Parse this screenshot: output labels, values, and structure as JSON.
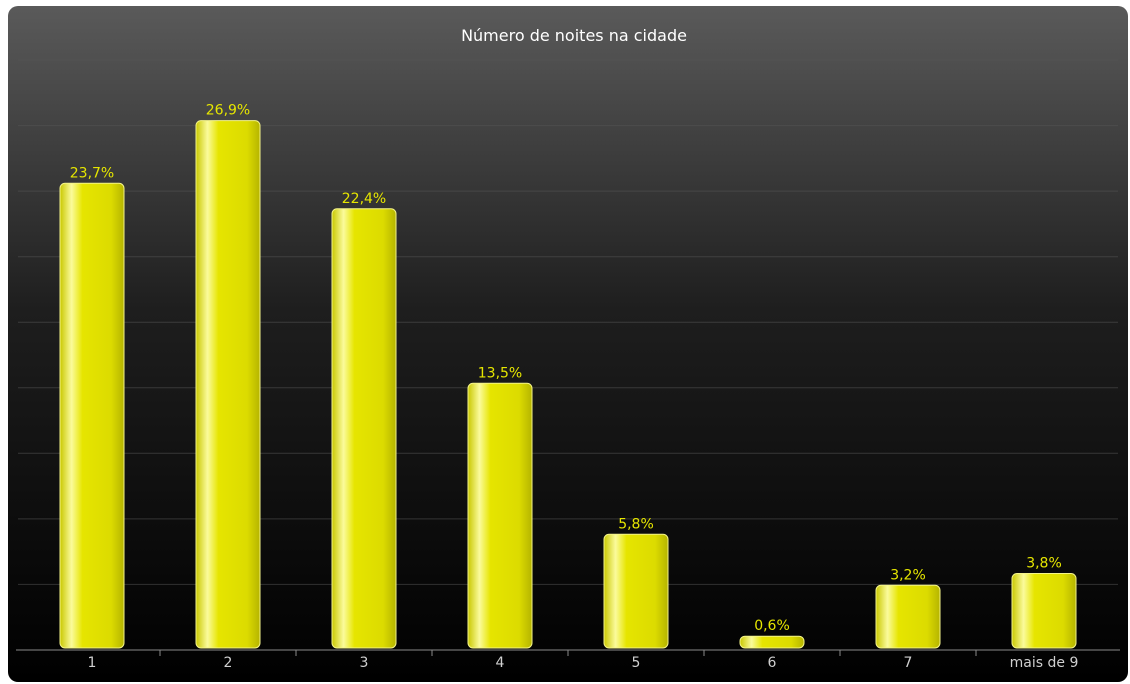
{
  "chart_data": {
    "type": "bar",
    "title": "Número de noites na cidade",
    "categories": [
      "1",
      "2",
      "3",
      "4",
      "5",
      "6",
      "7",
      "mais de 9"
    ],
    "values": [
      23.7,
      26.9,
      22.4,
      13.5,
      5.8,
      0.6,
      3.2,
      3.8
    ],
    "value_labels": [
      "23,7%",
      "26,9%",
      "22,4%",
      "13,5%",
      "5,8%",
      "0,6%",
      "3,2%",
      "3,8%"
    ],
    "xlabel": "",
    "ylabel": "",
    "ylim": [
      0,
      30
    ],
    "grid": true,
    "legend": "none",
    "colors": {
      "background_top": "#5a5a5a",
      "background_bottom": "#000000",
      "bar": "#e3e200",
      "bar_highlight": "#fbfb9c",
      "value_label": "#e6e600",
      "tick_label": "#d0d0d0",
      "title": "#ffffff"
    }
  }
}
